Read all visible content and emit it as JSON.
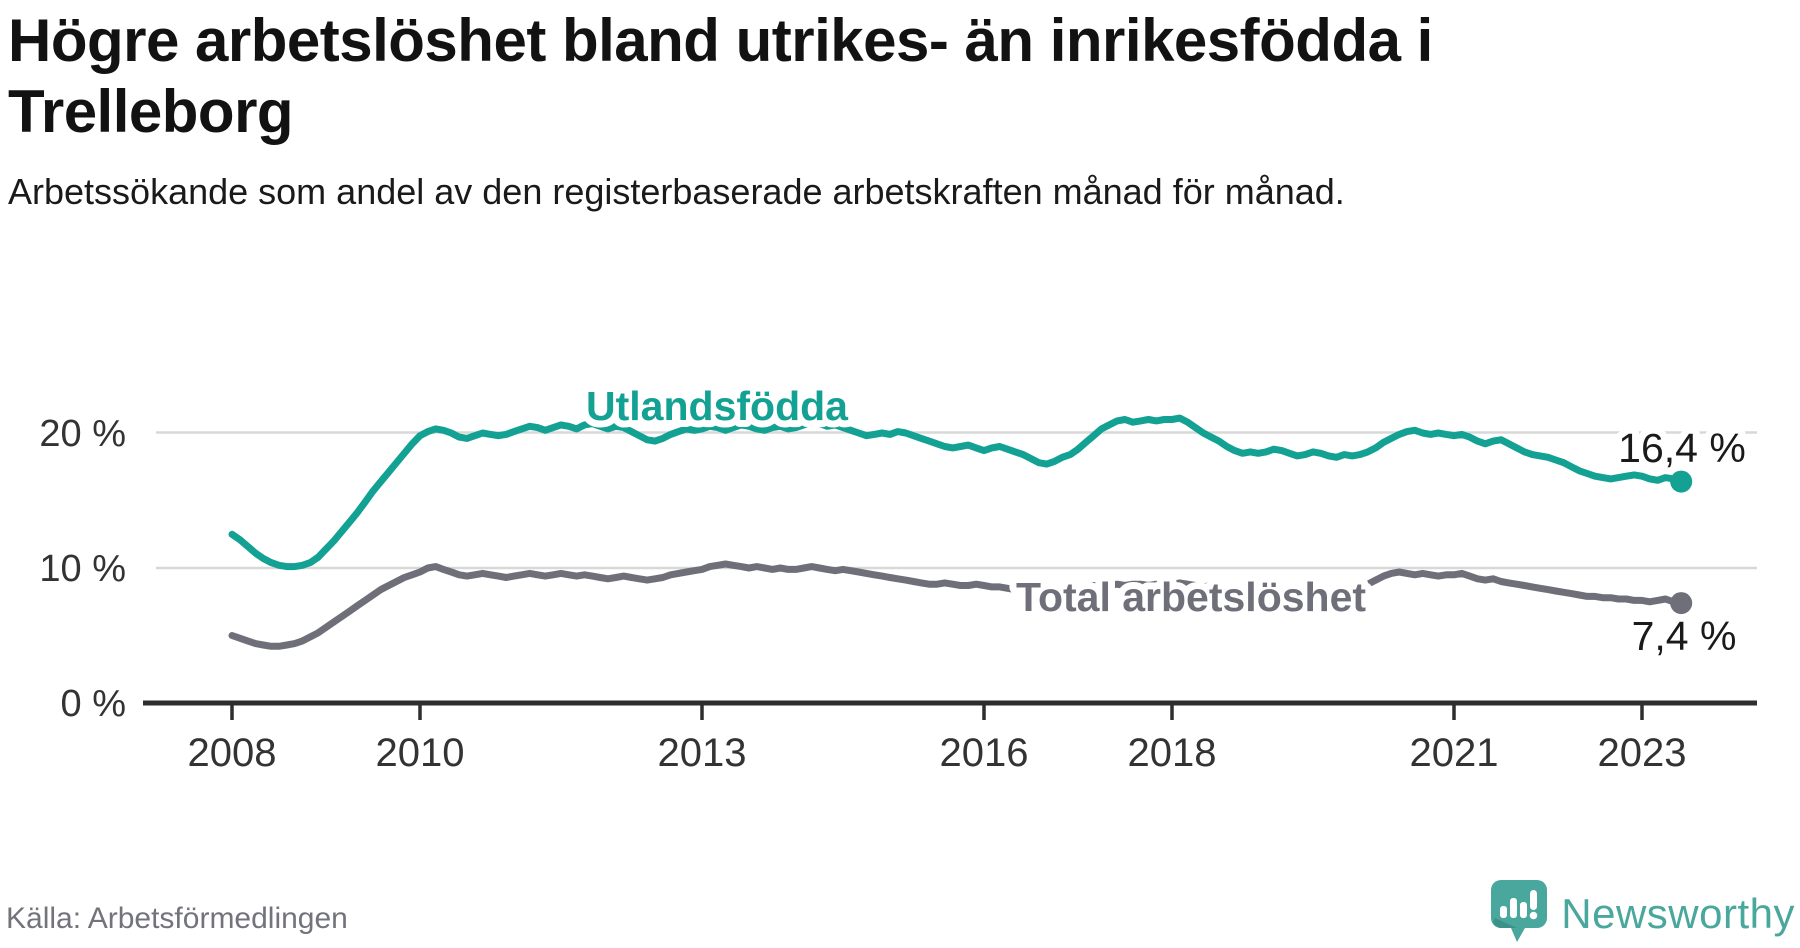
{
  "header": {
    "title": "Högre arbetslöshet bland utrikes- än inrikesfödda i Trelleborg",
    "subtitle": "Arbetssökande som andel av den registerbaserade arbetskraften månad för månad."
  },
  "footer": {
    "source": "Källa: Arbetsförmedlingen",
    "brand_name": "Newsworthy",
    "brand_icon": "newsworthy-speech-bubble-bar-chart-icon"
  },
  "colors": {
    "foreign_born_line": "#12a193",
    "total_line": "#6f6f79",
    "grid": "#d8d8d8",
    "axis": "#2e2e2e",
    "annotation_text": "#1a1a1a",
    "brand_teal": "#4aa79d"
  },
  "chart_data": {
    "type": "line",
    "x_interval": "monthly",
    "x_start": "2008-01",
    "x_end": "2023-06",
    "x_tick_labels": [
      "2008",
      "2010",
      "2013",
      "2016",
      "2018",
      "2021",
      "2023"
    ],
    "y_tick_labels": [
      "0 %",
      "10 %",
      "20 %"
    ],
    "ylim": [
      0,
      24
    ],
    "grid": "horizontal-only",
    "legend_position": "inline-labels",
    "series": [
      {
        "name": "Utlandsfödda",
        "color": "#12a193",
        "end_label": "16,4 %",
        "end_value": 16.4,
        "values": [
          12.5,
          12.1,
          11.6,
          11.1,
          10.7,
          10.4,
          10.2,
          10.1,
          10.1,
          10.2,
          10.4,
          10.8,
          11.4,
          12.0,
          12.7,
          13.4,
          14.1,
          14.9,
          15.7,
          16.4,
          17.1,
          17.8,
          18.5,
          19.2,
          19.8,
          20.1,
          20.3,
          20.2,
          20.0,
          19.7,
          19.6,
          19.8,
          20.0,
          19.9,
          19.8,
          19.9,
          20.1,
          20.3,
          20.5,
          20.4,
          20.2,
          20.4,
          20.6,
          20.5,
          20.3,
          20.6,
          20.7,
          20.5,
          20.3,
          20.5,
          20.4,
          20.1,
          19.8,
          19.5,
          19.4,
          19.6,
          19.9,
          20.1,
          20.3,
          20.2,
          20.3,
          20.5,
          20.4,
          20.2,
          20.4,
          20.6,
          20.5,
          20.3,
          20.2,
          20.4,
          20.5,
          20.3,
          20.4,
          20.6,
          20.8,
          20.7,
          20.5,
          20.6,
          20.4,
          20.2,
          20.0,
          19.8,
          19.9,
          20.0,
          19.9,
          20.1,
          20.0,
          19.8,
          19.6,
          19.4,
          19.2,
          19.0,
          18.9,
          19.0,
          19.1,
          18.9,
          18.7,
          18.9,
          19.0,
          18.8,
          18.6,
          18.4,
          18.1,
          17.8,
          17.7,
          17.9,
          18.2,
          18.4,
          18.8,
          19.3,
          19.8,
          20.3,
          20.6,
          20.9,
          21.0,
          20.8,
          20.9,
          21.0,
          20.9,
          21.0,
          21.0,
          21.1,
          20.8,
          20.4,
          20.0,
          19.7,
          19.4,
          19.0,
          18.7,
          18.5,
          18.6,
          18.5,
          18.6,
          18.8,
          18.7,
          18.5,
          18.3,
          18.4,
          18.6,
          18.5,
          18.3,
          18.2,
          18.4,
          18.3,
          18.4,
          18.6,
          18.9,
          19.3,
          19.6,
          19.9,
          20.1,
          20.2,
          20.0,
          19.9,
          20.0,
          19.9,
          19.8,
          19.9,
          19.7,
          19.4,
          19.2,
          19.4,
          19.5,
          19.2,
          18.9,
          18.6,
          18.4,
          18.3,
          18.2,
          18.0,
          17.8,
          17.5,
          17.2,
          17.0,
          16.8,
          16.7,
          16.6,
          16.7,
          16.8,
          16.9,
          16.8,
          16.6,
          16.5,
          16.7,
          16.6,
          16.4
        ]
      },
      {
        "name": "Total arbetslöshet",
        "color": "#6f6f79",
        "end_label": "7,4 %",
        "end_value": 7.4,
        "values": [
          5.0,
          4.8,
          4.6,
          4.4,
          4.3,
          4.2,
          4.2,
          4.3,
          4.4,
          4.6,
          4.9,
          5.2,
          5.6,
          6.0,
          6.4,
          6.8,
          7.2,
          7.6,
          8.0,
          8.4,
          8.7,
          9.0,
          9.3,
          9.5,
          9.7,
          10.0,
          10.1,
          9.9,
          9.7,
          9.5,
          9.4,
          9.5,
          9.6,
          9.5,
          9.4,
          9.3,
          9.4,
          9.5,
          9.6,
          9.5,
          9.4,
          9.5,
          9.6,
          9.5,
          9.4,
          9.5,
          9.4,
          9.3,
          9.2,
          9.3,
          9.4,
          9.3,
          9.2,
          9.1,
          9.2,
          9.3,
          9.5,
          9.6,
          9.7,
          9.8,
          9.9,
          10.1,
          10.2,
          10.3,
          10.2,
          10.1,
          10.0,
          10.1,
          10.0,
          9.9,
          10.0,
          9.9,
          9.9,
          10.0,
          10.1,
          10.0,
          9.9,
          9.8,
          9.9,
          9.8,
          9.7,
          9.6,
          9.5,
          9.4,
          9.3,
          9.2,
          9.1,
          9.0,
          8.9,
          8.8,
          8.8,
          8.9,
          8.8,
          8.7,
          8.7,
          8.8,
          8.7,
          8.6,
          8.6,
          8.5,
          8.4,
          8.3,
          8.2,
          8.3,
          8.4,
          8.3,
          8.4,
          8.5,
          8.5,
          8.6,
          8.7,
          8.6,
          8.7,
          8.8,
          8.7,
          8.8,
          8.8,
          8.7,
          8.8,
          8.7,
          8.8,
          8.9,
          8.8,
          8.7,
          8.6,
          8.7,
          8.6,
          8.5,
          8.6,
          8.5,
          8.4,
          8.5,
          8.4,
          8.5,
          8.4,
          8.3,
          8.4,
          8.5,
          8.6,
          8.5,
          8.4,
          8.5,
          8.6,
          8.5,
          8.6,
          8.8,
          9.1,
          9.4,
          9.6,
          9.7,
          9.6,
          9.5,
          9.6,
          9.5,
          9.4,
          9.5,
          9.5,
          9.6,
          9.4,
          9.2,
          9.1,
          9.2,
          9.0,
          8.9,
          8.8,
          8.7,
          8.6,
          8.5,
          8.4,
          8.3,
          8.2,
          8.1,
          8.0,
          7.9,
          7.9,
          7.8,
          7.8,
          7.7,
          7.7,
          7.6,
          7.6,
          7.5,
          7.6,
          7.7,
          7.5,
          7.4
        ]
      }
    ]
  }
}
